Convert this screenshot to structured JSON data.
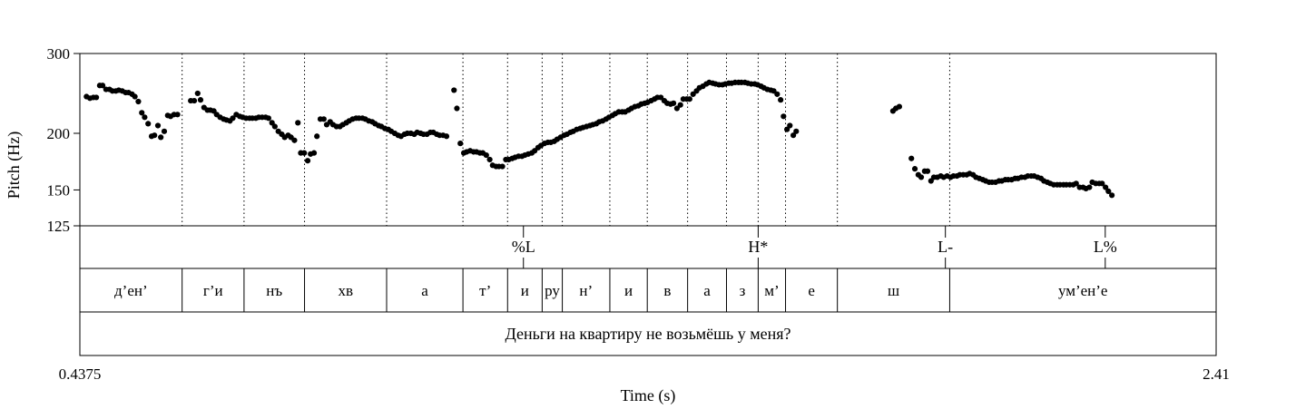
{
  "chart_data": {
    "type": "scatter",
    "xlabel": "Time (s)",
    "ylabel": "Pitch (Hz)",
    "xlim": [
      0.4375,
      2.41
    ],
    "ylim": [
      125,
      300
    ],
    "y_scale": "log",
    "x_tick_labels": [
      "0.4375",
      "2.41"
    ],
    "y_ticks": [
      125,
      150,
      200,
      300
    ],
    "y_tick_labels": [
      "125",
      "150",
      "200",
      "300"
    ],
    "points": [
      [
        0.449,
        241
      ],
      [
        0.455,
        239
      ],
      [
        0.461,
        240
      ],
      [
        0.466,
        240
      ],
      [
        0.472,
        255
      ],
      [
        0.477,
        255
      ],
      [
        0.483,
        250
      ],
      [
        0.489,
        250
      ],
      [
        0.494,
        248
      ],
      [
        0.5,
        248
      ],
      [
        0.505,
        249
      ],
      [
        0.511,
        248
      ],
      [
        0.517,
        246
      ],
      [
        0.522,
        246
      ],
      [
        0.528,
        244
      ],
      [
        0.533,
        241
      ],
      [
        0.539,
        235
      ],
      [
        0.545,
        222
      ],
      [
        0.55,
        217
      ],
      [
        0.556,
        210
      ],
      [
        0.562,
        197
      ],
      [
        0.567,
        198
      ],
      [
        0.573,
        208
      ],
      [
        0.578,
        196
      ],
      [
        0.584,
        202
      ],
      [
        0.59,
        219
      ],
      [
        0.595,
        218
      ],
      [
        0.601,
        220
      ],
      [
        0.607,
        220
      ],
      [
        0.63,
        236
      ],
      [
        0.636,
        236
      ],
      [
        0.642,
        245
      ],
      [
        0.647,
        237
      ],
      [
        0.653,
        228
      ],
      [
        0.659,
        225
      ],
      [
        0.664,
        225
      ],
      [
        0.67,
        224
      ],
      [
        0.675,
        220
      ],
      [
        0.681,
        217
      ],
      [
        0.687,
        215
      ],
      [
        0.692,
        214
      ],
      [
        0.698,
        213
      ],
      [
        0.703,
        216
      ],
      [
        0.709,
        220
      ],
      [
        0.715,
        218
      ],
      [
        0.72,
        217
      ],
      [
        0.726,
        216
      ],
      [
        0.732,
        216
      ],
      [
        0.737,
        216
      ],
      [
        0.743,
        216
      ],
      [
        0.748,
        217
      ],
      [
        0.754,
        217
      ],
      [
        0.76,
        217
      ],
      [
        0.765,
        216
      ],
      [
        0.771,
        211
      ],
      [
        0.776,
        207
      ],
      [
        0.782,
        202
      ],
      [
        0.788,
        199
      ],
      [
        0.793,
        196
      ],
      [
        0.799,
        198
      ],
      [
        0.804,
        196
      ],
      [
        0.81,
        193
      ],
      [
        0.816,
        211
      ],
      [
        0.821,
        181
      ],
      [
        0.827,
        181
      ],
      [
        0.833,
        174
      ],
      [
        0.838,
        180
      ],
      [
        0.844,
        181
      ],
      [
        0.849,
        197
      ],
      [
        0.855,
        215
      ],
      [
        0.861,
        215
      ],
      [
        0.866,
        209
      ],
      [
        0.872,
        212
      ],
      [
        0.877,
        209
      ],
      [
        0.883,
        207
      ],
      [
        0.889,
        207
      ],
      [
        0.894,
        209
      ],
      [
        0.9,
        211
      ],
      [
        0.905,
        213
      ],
      [
        0.911,
        215
      ],
      [
        0.917,
        216
      ],
      [
        0.922,
        216
      ],
      [
        0.928,
        216
      ],
      [
        0.933,
        215
      ],
      [
        0.939,
        213
      ],
      [
        0.945,
        212
      ],
      [
        0.95,
        210
      ],
      [
        0.956,
        208
      ],
      [
        0.961,
        207
      ],
      [
        0.967,
        205
      ],
      [
        0.973,
        204
      ],
      [
        0.978,
        202
      ],
      [
        0.984,
        200
      ],
      [
        0.99,
        198
      ],
      [
        0.995,
        197
      ],
      [
        1.001,
        199
      ],
      [
        1.006,
        200
      ],
      [
        1.012,
        200
      ],
      [
        1.018,
        199
      ],
      [
        1.023,
        201
      ],
      [
        1.029,
        200
      ],
      [
        1.034,
        199
      ],
      [
        1.04,
        199
      ],
      [
        1.046,
        201
      ],
      [
        1.051,
        201
      ],
      [
        1.057,
        199
      ],
      [
        1.062,
        198
      ],
      [
        1.068,
        198
      ],
      [
        1.074,
        197
      ],
      [
        1.087,
        249
      ],
      [
        1.092,
        227
      ],
      [
        1.098,
        190
      ],
      [
        1.104,
        181
      ],
      [
        1.109,
        182
      ],
      [
        1.115,
        183
      ],
      [
        1.121,
        182
      ],
      [
        1.126,
        182
      ],
      [
        1.132,
        181
      ],
      [
        1.137,
        181
      ],
      [
        1.143,
        179
      ],
      [
        1.149,
        175
      ],
      [
        1.154,
        170
      ],
      [
        1.16,
        169
      ],
      [
        1.165,
        169
      ],
      [
        1.171,
        169
      ],
      [
        1.177,
        175
      ],
      [
        1.182,
        175
      ],
      [
        1.188,
        176
      ],
      [
        1.193,
        177
      ],
      [
        1.199,
        178
      ],
      [
        1.205,
        178
      ],
      [
        1.21,
        179
      ],
      [
        1.216,
        180
      ],
      [
        1.222,
        181
      ],
      [
        1.227,
        183
      ],
      [
        1.233,
        186
      ],
      [
        1.238,
        188
      ],
      [
        1.244,
        190
      ],
      [
        1.25,
        191
      ],
      [
        1.255,
        191
      ],
      [
        1.261,
        192
      ],
      [
        1.266,
        194
      ],
      [
        1.272,
        196
      ],
      [
        1.278,
        198
      ],
      [
        1.283,
        199
      ],
      [
        1.289,
        201
      ],
      [
        1.294,
        202
      ],
      [
        1.3,
        204
      ],
      [
        1.306,
        205
      ],
      [
        1.311,
        206
      ],
      [
        1.317,
        207
      ],
      [
        1.323,
        208
      ],
      [
        1.328,
        209
      ],
      [
        1.334,
        210
      ],
      [
        1.339,
        212
      ],
      [
        1.345,
        213
      ],
      [
        1.351,
        215
      ],
      [
        1.356,
        217
      ],
      [
        1.362,
        219
      ],
      [
        1.367,
        221
      ],
      [
        1.373,
        223
      ],
      [
        1.379,
        223
      ],
      [
        1.384,
        223
      ],
      [
        1.39,
        225
      ],
      [
        1.395,
        227
      ],
      [
        1.401,
        229
      ],
      [
        1.407,
        230
      ],
      [
        1.412,
        232
      ],
      [
        1.418,
        233
      ],
      [
        1.423,
        234
      ],
      [
        1.429,
        236
      ],
      [
        1.435,
        238
      ],
      [
        1.44,
        240
      ],
      [
        1.446,
        240
      ],
      [
        1.452,
        236
      ],
      [
        1.457,
        233
      ],
      [
        1.463,
        232
      ],
      [
        1.468,
        233
      ],
      [
        1.474,
        227
      ],
      [
        1.48,
        231
      ],
      [
        1.485,
        238
      ],
      [
        1.491,
        238
      ],
      [
        1.496,
        238
      ],
      [
        1.502,
        244
      ],
      [
        1.508,
        248
      ],
      [
        1.513,
        252
      ],
      [
        1.519,
        254
      ],
      [
        1.525,
        257
      ],
      [
        1.53,
        259
      ],
      [
        1.536,
        258
      ],
      [
        1.541,
        257
      ],
      [
        1.547,
        256
      ],
      [
        1.553,
        256
      ],
      [
        1.558,
        257
      ],
      [
        1.564,
        258
      ],
      [
        1.569,
        258
      ],
      [
        1.575,
        259
      ],
      [
        1.581,
        259
      ],
      [
        1.586,
        259
      ],
      [
        1.592,
        259
      ],
      [
        1.597,
        258
      ],
      [
        1.603,
        257
      ],
      [
        1.609,
        257
      ],
      [
        1.614,
        256
      ],
      [
        1.62,
        254
      ],
      [
        1.625,
        252
      ],
      [
        1.631,
        250
      ],
      [
        1.637,
        249
      ],
      [
        1.642,
        248
      ],
      [
        1.648,
        244
      ],
      [
        1.654,
        237
      ],
      [
        1.659,
        218
      ],
      [
        1.665,
        204
      ],
      [
        1.67,
        208
      ],
      [
        1.676,
        198
      ],
      [
        1.681,
        202
      ],
      [
        1.849,
        224
      ],
      [
        1.854,
        227
      ],
      [
        1.86,
        229
      ],
      [
        1.881,
        176
      ],
      [
        1.887,
        167
      ],
      [
        1.893,
        162
      ],
      [
        1.898,
        160
      ],
      [
        1.904,
        165
      ],
      [
        1.909,
        165
      ],
      [
        1.915,
        157
      ],
      [
        1.92,
        160
      ],
      [
        1.926,
        160
      ],
      [
        1.932,
        161
      ],
      [
        1.937,
        160
      ],
      [
        1.943,
        161
      ],
      [
        1.949,
        160
      ],
      [
        1.954,
        161
      ],
      [
        1.96,
        161
      ],
      [
        1.965,
        162
      ],
      [
        1.971,
        162
      ],
      [
        1.977,
        162
      ],
      [
        1.982,
        163
      ],
      [
        1.988,
        162
      ],
      [
        1.993,
        160
      ],
      [
        1.999,
        159
      ],
      [
        2.005,
        158
      ],
      [
        2.01,
        157
      ],
      [
        2.016,
        156
      ],
      [
        2.021,
        156
      ],
      [
        2.027,
        156
      ],
      [
        2.033,
        157
      ],
      [
        2.038,
        157
      ],
      [
        2.044,
        158
      ],
      [
        2.049,
        158
      ],
      [
        2.055,
        158
      ],
      [
        2.061,
        159
      ],
      [
        2.066,
        159
      ],
      [
        2.072,
        160
      ],
      [
        2.078,
        160
      ],
      [
        2.083,
        161
      ],
      [
        2.089,
        161
      ],
      [
        2.094,
        161
      ],
      [
        2.1,
        160
      ],
      [
        2.106,
        159
      ],
      [
        2.111,
        157
      ],
      [
        2.117,
        156
      ],
      [
        2.122,
        155
      ],
      [
        2.128,
        154
      ],
      [
        2.134,
        154
      ],
      [
        2.139,
        154
      ],
      [
        2.145,
        154
      ],
      [
        2.15,
        154
      ],
      [
        2.156,
        154
      ],
      [
        2.162,
        154
      ],
      [
        2.167,
        155
      ],
      [
        2.173,
        152
      ],
      [
        2.179,
        152
      ],
      [
        2.184,
        151
      ],
      [
        2.19,
        152
      ],
      [
        2.195,
        156
      ],
      [
        2.201,
        155
      ],
      [
        2.207,
        155
      ],
      [
        2.212,
        155
      ],
      [
        2.218,
        152
      ],
      [
        2.223,
        149
      ],
      [
        2.229,
        146
      ]
    ],
    "tiers": [
      {
        "type": "point",
        "items": [
          {
            "time": 1.2075,
            "label": "%L"
          },
          {
            "time": 1.615,
            "label": "H*"
          },
          {
            "time": 1.94,
            "label": "L-"
          },
          {
            "time": 2.2175,
            "label": "L%"
          }
        ]
      },
      {
        "type": "interval",
        "boundaries": [
          0.4375,
          0.615,
          0.7225,
          0.8275,
          0.97,
          1.1025,
          1.18,
          1.24,
          1.275,
          1.3575,
          1.4225,
          1.4925,
          1.56,
          1.615,
          1.6625,
          1.7525,
          1.9475,
          2.41
        ],
        "labels": [
          "д’ен’",
          "г’и",
          "нъ",
          "хв",
          "а",
          "т’",
          "и",
          "ру",
          "н’",
          "и",
          "в",
          "а",
          "з",
          "м’",
          "е",
          "ш",
          "ум’ен’е"
        ]
      },
      {
        "type": "interval",
        "boundaries": [
          0.4375,
          2.41
        ],
        "labels": [
          "Деньги на квартиру не возьмёшь у меня?"
        ]
      }
    ],
    "pitch_dotted_lines_at": [
      0.615,
      0.7225,
      0.8275,
      0.97,
      1.1025,
      1.18,
      1.24,
      1.275,
      1.3575,
      1.4225,
      1.4925,
      1.56,
      1.615,
      1.6625,
      1.7525,
      1.9475
    ]
  }
}
